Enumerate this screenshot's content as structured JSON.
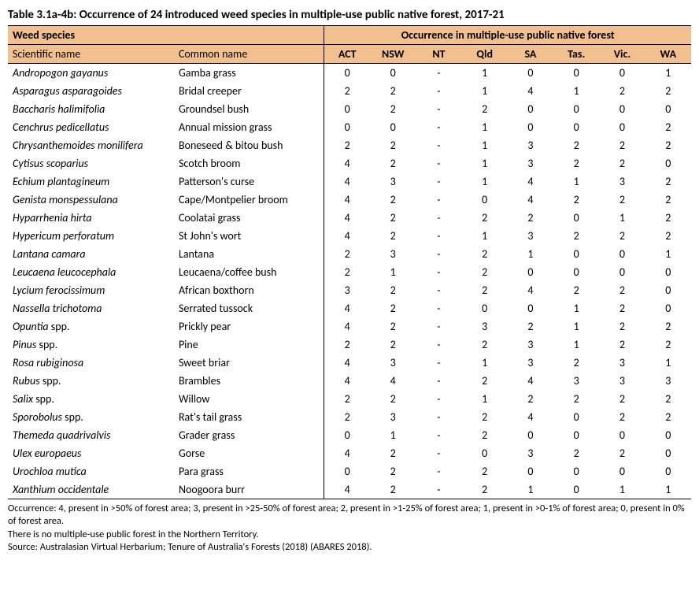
{
  "title": "Table 3.1a-4b: Occurrence of 24 introduced weed species in multiple-use public native forest, 2017-21",
  "headers": {
    "group_left": "Weed species",
    "group_right": "Occurrence in multiple-use public native forest",
    "sci": "Scientific name",
    "com": "Common name",
    "states": [
      "ACT",
      "NSW",
      "NT",
      "Qld",
      "SA",
      "Tas.",
      "Vic.",
      "WA"
    ]
  },
  "rows": [
    {
      "sci": "Andropogon gayanus",
      "com": "Gamba grass",
      "v": [
        "0",
        "0",
        "-",
        "1",
        "0",
        "0",
        "0",
        "1"
      ]
    },
    {
      "sci": "Asparagus asparagoides",
      "com": "Bridal creeper",
      "v": [
        "2",
        "2",
        "-",
        "1",
        "4",
        "1",
        "2",
        "2"
      ]
    },
    {
      "sci": "Baccharis halimifolia",
      "com": "Groundsel bush",
      "v": [
        "0",
        "2",
        "-",
        "2",
        "0",
        "0",
        "0",
        "0"
      ]
    },
    {
      "sci": "Cenchrus pedicellatus",
      "com": "Annual mission grass",
      "v": [
        "0",
        "0",
        "-",
        "1",
        "0",
        "0",
        "0",
        "2"
      ]
    },
    {
      "sci": "Chrysanthemoides monilifera",
      "com": "Boneseed & bitou bush",
      "v": [
        "2",
        "2",
        "-",
        "1",
        "3",
        "2",
        "2",
        "2"
      ]
    },
    {
      "sci": "Cytisus scoparius",
      "com": "Scotch broom",
      "v": [
        "4",
        "2",
        "-",
        "1",
        "3",
        "2",
        "2",
        "0"
      ]
    },
    {
      "sci": "Echium plantagineum",
      "com": "Patterson's curse",
      "v": [
        "4",
        "3",
        "-",
        "1",
        "4",
        "1",
        "3",
        "2"
      ]
    },
    {
      "sci": "Genista monspessulana",
      "com": "Cape/Montpelier broom",
      "v": [
        "4",
        "2",
        "-",
        "0",
        "4",
        "2",
        "2",
        "2"
      ]
    },
    {
      "sci": "Hyparrhenia hirta",
      "com": "Coolatai grass",
      "v": [
        "4",
        "2",
        "-",
        "2",
        "2",
        "0",
        "1",
        "2"
      ]
    },
    {
      "sci": "Hypericum perforatum",
      "com": "St John's wort",
      "v": [
        "4",
        "2",
        "-",
        "1",
        "3",
        "2",
        "2",
        "2"
      ]
    },
    {
      "sci": "Lantana camara",
      "com": "Lantana",
      "v": [
        "2",
        "3",
        "-",
        "2",
        "1",
        "0",
        "0",
        "1"
      ]
    },
    {
      "sci": "Leucaena leucocephala",
      "com": "Leucaena/coffee bush",
      "v": [
        "2",
        "1",
        "-",
        "2",
        "0",
        "0",
        "0",
        "0"
      ]
    },
    {
      "sci": "Lycium ferocissimum",
      "com": "African boxthorn",
      "v": [
        "3",
        "2",
        "-",
        "2",
        "4",
        "2",
        "2",
        "0"
      ]
    },
    {
      "sci": "Nassella trichotoma",
      "com": "Serrated tussock",
      "v": [
        "4",
        "2",
        "-",
        "0",
        "0",
        "1",
        "2",
        "0"
      ]
    },
    {
      "sci": "Opuntia spp.",
      "com": "Prickly pear",
      "v": [
        "4",
        "2",
        "-",
        "3",
        "2",
        "1",
        "2",
        "2"
      ]
    },
    {
      "sci": "Pinus spp.",
      "com": "Pine",
      "v": [
        "2",
        "2",
        "-",
        "2",
        "3",
        "1",
        "2",
        "2"
      ]
    },
    {
      "sci": "Rosa rubiginosa",
      "com": "Sweet briar",
      "v": [
        "4",
        "3",
        "-",
        "1",
        "3",
        "2",
        "3",
        "1"
      ]
    },
    {
      "sci": "Rubus spp.",
      "com": "Brambles",
      "v": [
        "4",
        "4",
        "-",
        "2",
        "4",
        "3",
        "3",
        "3"
      ]
    },
    {
      "sci": "Salix spp.",
      "com": "Willow",
      "v": [
        "2",
        "2",
        "-",
        "1",
        "2",
        "2",
        "2",
        "2"
      ]
    },
    {
      "sci": "Sporobolus spp.",
      "com": "Rat's tail grass",
      "v": [
        "2",
        "3",
        "-",
        "2",
        "4",
        "0",
        "2",
        "2"
      ]
    },
    {
      "sci": "Themeda quadrivalvis",
      "com": "Grader grass",
      "v": [
        "0",
        "1",
        "-",
        "2",
        "0",
        "0",
        "0",
        "0"
      ]
    },
    {
      "sci": "Ulex europaeus",
      "com": "Gorse",
      "v": [
        "4",
        "2",
        "-",
        "0",
        "3",
        "2",
        "2",
        "0"
      ]
    },
    {
      "sci": "Urochloa mutica",
      "com": "Para grass",
      "v": [
        "0",
        "2",
        "-",
        "2",
        "0",
        "0",
        "0",
        "0"
      ]
    },
    {
      "sci": "Xanthium occidentale",
      "com": "Noogoora burr",
      "v": [
        "4",
        "2",
        "-",
        "2",
        "1",
        "0",
        "1",
        "1"
      ]
    }
  ],
  "footnotes": [
    "Occurrence: 4, present in >50% of forest area; 3, present in >25-50% of forest area; 2, present in >1-25% of forest area; 1, present in >0-1% of forest area; 0, present in 0% of forest area.",
    "There is no multiple-use public forest in the Northern Territory.",
    "Source: Australasian Virtual Herbarium; Tenure of Australia's Forests (2018) (ABARES 2018)."
  ]
}
